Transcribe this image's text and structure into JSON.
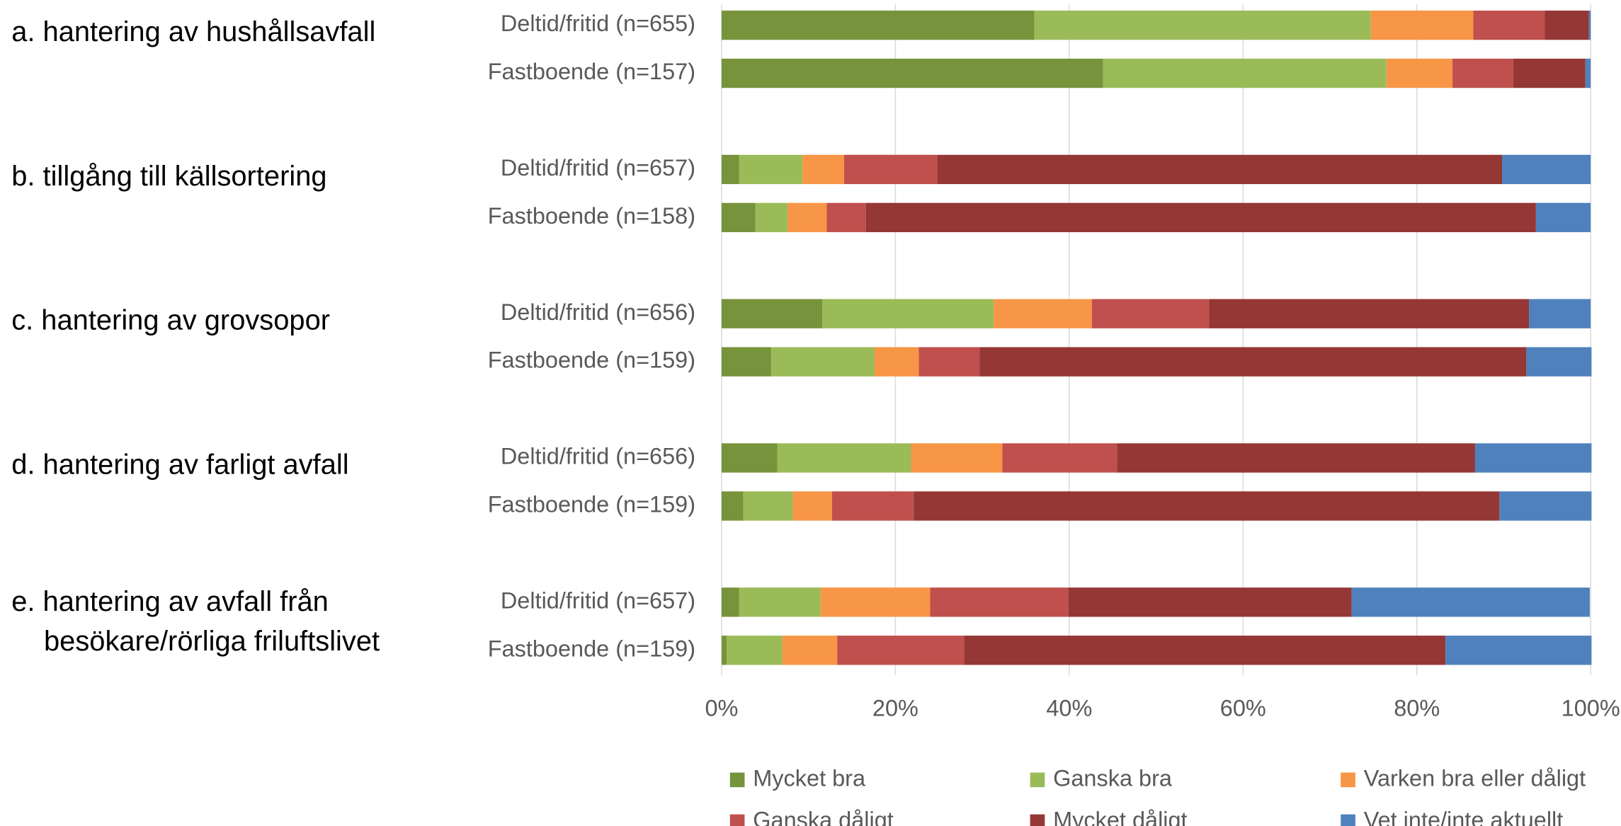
{
  "chart_data": {
    "type": "stacked-barh",
    "groups": [
      {
        "lines": [
          "a. hantering av hushållsavfall"
        ]
      },
      {
        "lines": [
          "b. tillgång till källsortering"
        ]
      },
      {
        "lines": [
          "c. hantering av grovsopor"
        ]
      },
      {
        "lines": [
          "d. hantering av farligt avfall"
        ]
      },
      {
        "lines": [
          "e. hantering av avfall från",
          "besökare/rörliga friluftslivet"
        ]
      }
    ],
    "categories": [
      "Deltid/fritid (n=655)",
      "Fastboende (n=157)",
      "Deltid/fritid (n=657)",
      "Fastboende (n=158)",
      "Deltid/fritid (n=656)",
      "Fastboende (n=159)",
      "Deltid/fritid (n=656)",
      "Fastboende (n=159)",
      "Deltid/fritid (n=657)",
      "Fastboende (n=159)"
    ],
    "series": [
      {
        "name": "Mycket bra",
        "color": "#77933c",
        "values": [
          36.0,
          43.9,
          2.0,
          3.9,
          11.6,
          5.7,
          6.4,
          2.5,
          2.0,
          0.6
        ]
      },
      {
        "name": "Ganska bra",
        "color": "#9bbb59",
        "values": [
          38.7,
          32.6,
          7.3,
          3.7,
          19.7,
          11.9,
          15.4,
          5.7,
          9.4,
          6.4
        ]
      },
      {
        "name": "Varken bra eller dåligt",
        "color": "#f79646",
        "values": [
          11.8,
          7.6,
          4.8,
          4.5,
          11.3,
          5.1,
          10.5,
          4.5,
          12.6,
          6.3
        ]
      },
      {
        "name": "Ganska dåligt",
        "color": "#c0504d",
        "values": [
          8.2,
          7.0,
          10.7,
          4.5,
          13.5,
          7.0,
          13.2,
          9.4,
          15.9,
          14.6
        ]
      },
      {
        "name": "Mycket dåligt",
        "color": "#953735",
        "values": [
          5.1,
          8.3,
          65.0,
          77.1,
          36.8,
          62.9,
          41.2,
          67.4,
          32.6,
          55.4
        ]
      },
      {
        "name": "Vet inte/inte aktuellt",
        "color": "#4f81bd",
        "values": [
          0.2,
          0.6,
          10.2,
          6.3,
          7.1,
          7.5,
          13.4,
          10.6,
          27.4,
          16.8
        ]
      }
    ],
    "xlim": [
      0,
      100
    ],
    "xticks": [
      {
        "value": 0,
        "label": "0%"
      },
      {
        "value": 20,
        "label": "20%"
      },
      {
        "value": 40,
        "label": "40%"
      },
      {
        "value": 60,
        "label": "60%"
      },
      {
        "value": 80,
        "label": "80%"
      },
      {
        "value": 100,
        "label": "100%"
      }
    ],
    "grid": true
  }
}
